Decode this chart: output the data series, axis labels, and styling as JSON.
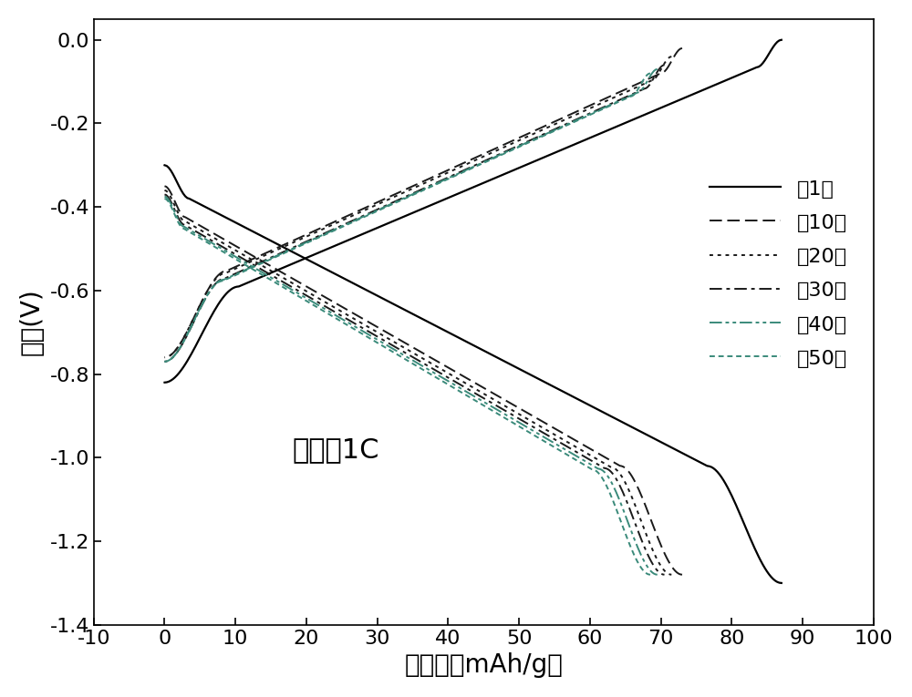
{
  "xlabel": "比容量（mAh/g）",
  "ylabel": "电压(V)",
  "annotation": "倍率：1C",
  "xlim": [
    -10,
    100
  ],
  "ylim": [
    -1.4,
    0.05
  ],
  "xticks": [
    -10,
    0,
    10,
    20,
    30,
    40,
    50,
    60,
    70,
    80,
    90,
    100
  ],
  "yticks": [
    0.0,
    -0.2,
    -0.4,
    -0.6,
    -0.8,
    -1.0,
    -1.2,
    -1.4
  ],
  "legend_labels": [
    "第1圈",
    "第10圈",
    "第20圈",
    "第30圈",
    "第40圈",
    "第50圈"
  ],
  "line_colors": [
    "#000000",
    "#1a1a1a",
    "#1a1a1a",
    "#1a1a1a",
    "#3a8a7a",
    "#3a8a7a"
  ],
  "line_widths": [
    1.6,
    1.4,
    1.4,
    1.4,
    1.4,
    1.4
  ],
  "background_color": "#ffffff",
  "font_size_labels": 20,
  "font_size_ticks": 16,
  "font_size_legend": 16,
  "font_size_annotation": 22
}
